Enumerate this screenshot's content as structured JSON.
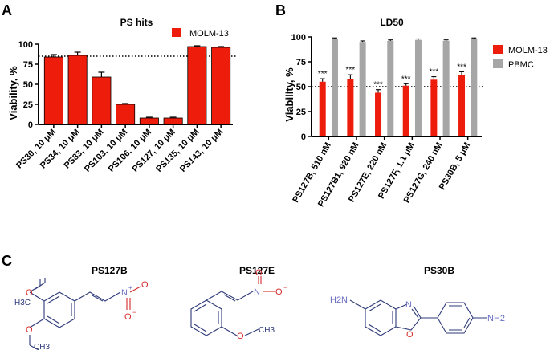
{
  "colors": {
    "red": "#ee1c0b",
    "gray": "#a6a6a6",
    "navy": "#2e3a7a",
    "oxygen": "#d42a2a",
    "nitrogen": "#6b6fc4"
  },
  "panels": {
    "a": "A",
    "b": "B",
    "c": "C"
  },
  "chart_data": [
    {
      "type": "bar",
      "title": "PS hits",
      "ylabel": "Viability, %",
      "xlabel": "",
      "ylim": [
        0,
        100
      ],
      "yticks": [
        0,
        25,
        50,
        75,
        100
      ],
      "reference_line": 85,
      "legend": [
        {
          "name": "MOLM-13",
          "color": "#ee1c0b"
        }
      ],
      "categories": [
        "PS30, 10 μM",
        "PS34, 10 μM",
        "PS83, 10 μM",
        "PS103, 10 μM",
        "PS106, 10 μM",
        "PS127, 10 μM",
        "PS135, 10 μM",
        "PS143, 10 μM"
      ],
      "series": [
        {
          "name": "MOLM-13",
          "values": [
            84,
            86,
            59,
            25,
            8,
            8,
            97,
            96
          ],
          "errors": [
            3,
            4,
            6,
            1,
            1,
            1,
            1,
            1
          ]
        }
      ]
    },
    {
      "type": "bar",
      "title": "LD50",
      "ylabel": "Viability, %",
      "xlabel": "",
      "ylim": [
        0,
        100
      ],
      "yticks": [
        0,
        25,
        50,
        75,
        100
      ],
      "reference_line": 50,
      "legend": [
        {
          "name": "MOLM-13",
          "color": "#ee1c0b"
        },
        {
          "name": "PBMC",
          "color": "#a6a6a6"
        }
      ],
      "categories": [
        "PS127B, 510 nM",
        "PS127B1, 920 nM",
        "PS127E, 220 nM",
        "PS127F, 1.1 μM",
        "PS127G, 240 nM",
        "PS30B, 5 μM"
      ],
      "series": [
        {
          "name": "MOLM-13",
          "values": [
            55,
            58,
            44,
            51,
            57,
            62
          ],
          "errors": [
            3,
            4,
            3,
            2,
            3,
            3
          ]
        },
        {
          "name": "PBMC",
          "values": [
            98,
            95,
            96,
            97,
            96,
            98
          ],
          "errors": [
            1,
            1,
            1,
            1,
            1,
            1
          ]
        }
      ],
      "annotations": [
        "***",
        "***",
        "***",
        "***",
        "***",
        "***"
      ]
    }
  ],
  "structures": [
    {
      "name": "PS127B",
      "atoms": {
        "o1": "O",
        "o2": "O",
        "ch3a": "H3C",
        "ch3b": "CH3",
        "n": "N",
        "nplus": "+",
        "o3": "O",
        "o4": "O",
        "ominus": "−"
      }
    },
    {
      "name": "PS127E",
      "atoms": {
        "n": "N",
        "nplus": "+",
        "o1": "O",
        "o2": "O",
        "ominus": "−",
        "o3": "O",
        "ch3": "CH3"
      }
    },
    {
      "name": "PS30B",
      "atoms": {
        "h2n": "H2N",
        "n": "N",
        "o": "O",
        "nh2": "NH2"
      }
    }
  ]
}
